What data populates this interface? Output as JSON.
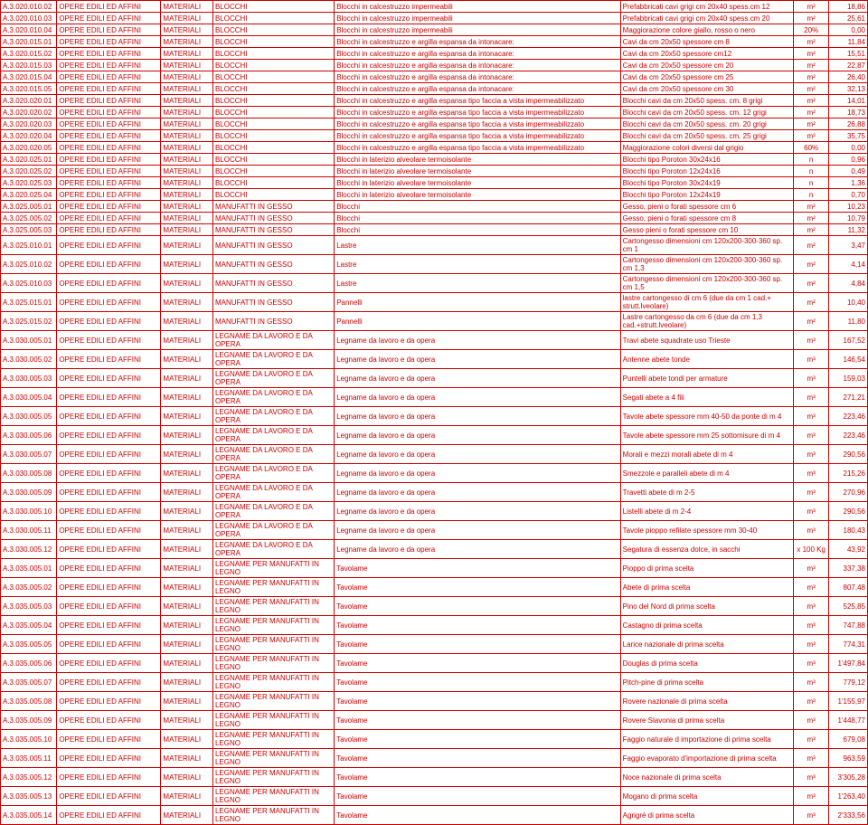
{
  "columns_width": [
    "6.5%",
    "12%",
    "6%",
    "14%",
    "33%",
    "20%",
    "4%",
    "4.5%"
  ],
  "rows": [
    {
      "h": 0,
      "c": [
        "A.3.020.010.02",
        "OPERE EDILI ED AFFINI",
        "MATERIALI",
        "BLOCCHI",
        "Blocchi in calcestruzzo impermeabili",
        "Prefabbricati cavi  grigi cm 20x40 spess.cm 12",
        "m²",
        "18,86"
      ]
    },
    {
      "h": 0,
      "c": [
        "A.3.020.010.03",
        "OPERE EDILI ED AFFINI",
        "MATERIALI",
        "BLOCCHI",
        "Blocchi in calcestruzzo impermeabili",
        "Prefabbricati cavi grigi cm 20x40 spess.cm 20",
        "m²",
        "25,61"
      ]
    },
    {
      "h": 0,
      "c": [
        "A.3.020.010.04",
        "OPERE EDILI ED AFFINI",
        "MATERIALI",
        "BLOCCHI",
        "Blocchi in calcestruzzo impermeabili",
        "Maggiorazione colore giallo, rosso o nero",
        "20%",
        "0,00"
      ]
    },
    {
      "h": 0,
      "c": [
        "A.3.020.015.01",
        "OPERE EDILI ED AFFINI",
        "MATERIALI",
        "BLOCCHI",
        "Blocchi in calcestruzzo e argilla espansa da intonacare:",
        "Cavi da cm 20x50 spessore cm 8",
        "m²",
        "11,84"
      ]
    },
    {
      "h": 0,
      "c": [
        "A.3.020.015.02",
        "OPERE EDILI ED AFFINI",
        "MATERIALI",
        "BLOCCHI",
        "Blocchi in calcestruzzo e argilla espansa da intonacare:",
        "Cavi da cm 20x50 spessore cm12",
        "m²",
        "15,51"
      ]
    },
    {
      "h": 0,
      "c": [
        "A.3.020.015.03",
        "OPERE EDILI ED AFFINI",
        "MATERIALI",
        "BLOCCHI",
        "Blocchi in calcestruzzo e argilla espansa da intonacare:",
        "Cavi da cm 20x50 spessore cm 20",
        "m²",
        "22,87"
      ]
    },
    {
      "h": 0,
      "c": [
        "A.3.020.015.04",
        "OPERE EDILI ED AFFINI",
        "MATERIALI",
        "BLOCCHI",
        "Blocchi in calcestruzzo e argilla espansa da intonacare:",
        "Cavi da cm 20x50 spessore cm 25",
        "m²",
        "26,40"
      ]
    },
    {
      "h": 0,
      "c": [
        "A.3.020.015.05",
        "OPERE EDILI ED AFFINI",
        "MATERIALI",
        "BLOCCHI",
        "Blocchi in calcestruzzo e argilla espansa da intonacare:",
        "Cavi da cm 20x50 spessore cm 30",
        "m²",
        "32,13"
      ]
    },
    {
      "h": 0,
      "c": [
        "A.3.020.020.01",
        "OPERE EDILI ED AFFINI",
        "MATERIALI",
        "BLOCCHI",
        "Blocchi in calcestruzzo e argilla espansa tipo faccia a vista impermeabilizzato",
        "Blocchi cavi da cm 20x50 spess. cm. 8 grigi",
        "m²",
        "14,01"
      ]
    },
    {
      "h": 0,
      "c": [
        "A.3.020.020.02",
        "OPERE EDILI ED AFFINI",
        "MATERIALI",
        "BLOCCHI",
        "Blocchi in calcestruzzo e argilla espansa tipo faccia a vista impermeabilizzato",
        "Blocchi cavi da cm 20x50 spess. cm. 12 grigi",
        "m²",
        "18,73"
      ]
    },
    {
      "h": 0,
      "c": [
        "A.3.020.020.03",
        "OPERE EDILI ED AFFINI",
        "MATERIALI",
        "BLOCCHI",
        "Blocchi in calcestruzzo e argilla espansa tipo faccia a vista impermeabilizzato",
        "Blocchi cavi da cm 20x50 spess. cm. 20 grigi",
        "m²",
        "26,88"
      ]
    },
    {
      "h": 0,
      "c": [
        "A.3.020.020.04",
        "OPERE EDILI ED AFFINI",
        "MATERIALI",
        "BLOCCHI",
        "Blocchi in calcestruzzo e argilla espansa tipo faccia a vista impermeabilizzato",
        "Blocchi cavi da cm 20x50 spess. cm. 25 grigi",
        "m²",
        "35,75"
      ]
    },
    {
      "h": 0,
      "c": [
        "A.3.020.020.05",
        "OPERE EDILI ED AFFINI",
        "MATERIALI",
        "BLOCCHI",
        "Blocchi in calcestruzzo e argilla espansa tipo faccia a vista impermeabilizzato",
        "Maggiorazione colori diversi dal grigio",
        "60%",
        "0,00"
      ]
    },
    {
      "h": 0,
      "c": [
        "A.3.020.025.01",
        "OPERE EDILI ED AFFINI",
        "MATERIALI",
        "BLOCCHI",
        "Blocchi in laterizio alveolare termoisolante",
        "Blocchi tipo Poroton 30x24x16",
        "n",
        "0,96"
      ]
    },
    {
      "h": 0,
      "c": [
        "A.3.020.025.02",
        "OPERE EDILI ED AFFINI",
        "MATERIALI",
        "BLOCCHI",
        "Blocchi in laterizio alveolare termoisolante",
        "Blocchi tipo Poroton 12x24x16",
        "n",
        "0,49"
      ]
    },
    {
      "h": 0,
      "c": [
        "A.3.020.025.03",
        "OPERE EDILI ED AFFINI",
        "MATERIALI",
        "BLOCCHI",
        "Blocchi in laterizio alveolare termoisolante",
        "Blocchi tipo Poroton 30x24x19",
        "n",
        "1,36"
      ]
    },
    {
      "h": 0,
      "c": [
        "A.3.020.025.04",
        "OPERE EDILI ED AFFINI",
        "MATERIALI",
        "BLOCCHI",
        "Blocchi in laterizio alveolare termoisolante",
        "Blocchi tipo Poroton 12x24x19",
        "n",
        "0,70"
      ]
    },
    {
      "h": 0,
      "c": [
        "A.3.025.005.01",
        "OPERE EDILI ED AFFINI",
        "MATERIALI",
        "MANUFATTI IN GESSO",
        "Blocchi",
        "Gesso, pieni o forati spessore cm 6",
        "m²",
        "10,23"
      ]
    },
    {
      "h": 0,
      "c": [
        "A.3.025.005.02",
        "OPERE EDILI ED AFFINI",
        "MATERIALI",
        "MANUFATTI IN GESSO",
        "Blocchi",
        "Gesso, pieni o forati spessore cm 8",
        "m²",
        "10,79"
      ]
    },
    {
      "h": 0,
      "c": [
        "A.3.025.005.03",
        "OPERE EDILI ED AFFINI",
        "MATERIALI",
        "MANUFATTI IN GESSO",
        "Blocchi",
        "Gesso pieni o forati spessore cm 10",
        "m²",
        "11,32"
      ]
    },
    {
      "h": 1,
      "c": [
        "A.3.025.010.01",
        "OPERE EDILI ED AFFINI",
        "MATERIALI",
        "MANUFATTI IN GESSO",
        "Lastre",
        "Cartongesso dimensioni cm 120x200-300-360 sp. cm 1",
        "m²",
        "3,47"
      ]
    },
    {
      "h": 1,
      "c": [
        "A.3.025.010.02",
        "OPERE EDILI ED AFFINI",
        "MATERIALI",
        "MANUFATTI IN GESSO",
        "Lastre",
        "Cartongesso dimensioni cm 120x200-300-360 sp. cm 1,3",
        "m²",
        "4,14"
      ]
    },
    {
      "h": 1,
      "c": [
        "A.3.025.010.03",
        "OPERE EDILI ED AFFINI",
        "MATERIALI",
        "MANUFATTI IN GESSO",
        "Lastre",
        "Cartongesso dimensioni cm 120x200-300-360 sp. cm 1,5",
        "m²",
        "4,84"
      ]
    },
    {
      "h": 1,
      "c": [
        "A.3.025.015.01",
        "OPERE EDILI ED AFFINI",
        "MATERIALI",
        "MANUFATTI IN GESSO",
        "Pannelli",
        "lastre cartongesso di cm 6 (due da cm 1 cad.+ strutt.lveolare)",
        "m²",
        "10,40"
      ]
    },
    {
      "h": 1,
      "c": [
        "A.3.025.015.02",
        "OPERE EDILI ED AFFINI",
        "MATERIALI",
        "MANUFATTI IN GESSO",
        "Pannelli",
        "Lastre cartongesso da cm 6 (due da cm 1,3 cad.+strutt.lveolare)",
        "m²",
        "11,80"
      ]
    },
    {
      "h": 1,
      "c": [
        "A.3.030.005.01",
        "OPERE EDILI ED AFFINI",
        "MATERIALI",
        "LEGNAME DA LAVORO E DA OPERA",
        "Legname da lavoro e da opera",
        "Travi abete squadrate uso Trieste",
        "m³",
        "167,52"
      ]
    },
    {
      "h": 1,
      "c": [
        "A.3.030.005.02",
        "OPERE EDILI ED AFFINI",
        "MATERIALI",
        "LEGNAME DA LAVORO E DA OPERA",
        "Legname da lavoro e da opera",
        "Antenne abete tonde",
        "m³",
        "146,54"
      ]
    },
    {
      "h": 1,
      "c": [
        "A.3.030.005.03",
        "OPERE EDILI ED AFFINI",
        "MATERIALI",
        "LEGNAME DA LAVORO E DA OPERA",
        "Legname da lavoro e da opera",
        "Puntelli abete tondi per armature",
        "m³",
        "159,03"
      ]
    },
    {
      "h": 1,
      "c": [
        "A.3.030.005.04",
        "OPERE EDILI ED AFFINI",
        "MATERIALI",
        "LEGNAME DA LAVORO E DA OPERA",
        "Legname da lavoro e da opera",
        "Segati abete a 4 fili",
        "m³",
        "271,21"
      ]
    },
    {
      "h": 1,
      "c": [
        "A.3.030.005.05",
        "OPERE EDILI ED AFFINI",
        "MATERIALI",
        "LEGNAME DA LAVORO E DA OPERA",
        "Legname da lavoro e da opera",
        "Tavole abete spessore mm 40-50 da ponte di m 4",
        "m³",
        "223,46"
      ]
    },
    {
      "h": 1,
      "c": [
        "A.3.030.005.06",
        "OPERE EDILI ED AFFINI",
        "MATERIALI",
        "LEGNAME DA LAVORO E DA OPERA",
        "Legname da lavoro e da opera",
        "Tavole abete spessore mm 25 sottomisure di m 4",
        "m³",
        "223,46"
      ]
    },
    {
      "h": 1,
      "c": [
        "A.3.030.005.07",
        "OPERE EDILI ED AFFINI",
        "MATERIALI",
        "LEGNAME DA LAVORO E DA OPERA",
        "Legname da lavoro e da opera",
        "Morali e mezzi morali abete di m 4",
        "m³",
        "290,56"
      ]
    },
    {
      "h": 1,
      "c": [
        "A.3.030.005.08",
        "OPERE EDILI ED AFFINI",
        "MATERIALI",
        "LEGNAME DA LAVORO E DA OPERA",
        "Legname da lavoro e da opera",
        "Smezzole e paralleli abete di m 4",
        "m³",
        "215,26"
      ]
    },
    {
      "h": 1,
      "c": [
        "A.3.030.005.09",
        "OPERE EDILI ED AFFINI",
        "MATERIALI",
        "LEGNAME DA LAVORO E DA OPERA",
        "Legname da lavoro e da opera",
        "Travetti abete di m 2-5",
        "m³",
        "270,96"
      ]
    },
    {
      "h": 1,
      "c": [
        "A.3.030.005.10",
        "OPERE EDILI ED AFFINI",
        "MATERIALI",
        "LEGNAME DA LAVORO E DA OPERA",
        "Legname da lavoro e da opera",
        "Listelli abete di m 2-4",
        "m³",
        "290,56"
      ]
    },
    {
      "h": 1,
      "c": [
        "A.3.030.005.11",
        "OPERE EDILI ED AFFINI",
        "MATERIALI",
        "LEGNAME DA LAVORO E DA OPERA",
        "Legname da lavoro e da opera",
        "Tavole pioppo refilate spessore mm 30-40",
        "m³",
        "180,43"
      ]
    },
    {
      "h": 1,
      "c": [
        "A.3.030.005.12",
        "OPERE EDILI ED AFFINI",
        "MATERIALI",
        "LEGNAME DA LAVORO E DA OPERA",
        "Legname da lavoro e da opera",
        "Segatura di essenza dolce, in sacchi",
        "x 100 Kg",
        "43,92"
      ]
    },
    {
      "h": 1,
      "c": [
        "A.3.035.005.01",
        "OPERE EDILI ED AFFINI",
        "MATERIALI",
        "LEGNAME PER MANUFATTI IN LEGNO",
        "Tavolame",
        "Pioppo di prima scelta",
        "m³",
        "337,38"
      ]
    },
    {
      "h": 1,
      "c": [
        "A.3.035.005.02",
        "OPERE EDILI ED AFFINI",
        "MATERIALI",
        "LEGNAME PER MANUFATTI IN LEGNO",
        "Tavolame",
        "Abete di prima scelta",
        "m³",
        "807,48"
      ]
    },
    {
      "h": 1,
      "c": [
        "A.3.035.005.03",
        "OPERE EDILI ED AFFINI",
        "MATERIALI",
        "LEGNAME PER MANUFATTI IN LEGNO",
        "Tavolame",
        "Pino del Nord di prima scelta",
        "m³",
        "525,85"
      ]
    },
    {
      "h": 1,
      "c": [
        "A.3.035.005.04",
        "OPERE EDILI ED AFFINI",
        "MATERIALI",
        "LEGNAME PER MANUFATTI IN LEGNO",
        "Tavolame",
        "Castagno di prima scelta",
        "m³",
        "747,88"
      ]
    },
    {
      "h": 1,
      "c": [
        "A.3.035.005.05",
        "OPERE EDILI ED AFFINI",
        "MATERIALI",
        "LEGNAME PER MANUFATTI IN LEGNO",
        "Tavolame",
        "Larice nazionale di prima scelta",
        "m³",
        "774,31"
      ]
    },
    {
      "h": 1,
      "c": [
        "A.3.035.005.06",
        "OPERE EDILI ED AFFINI",
        "MATERIALI",
        "LEGNAME PER MANUFATTI IN LEGNO",
        "Tavolame",
        "Douglas di prima scelta",
        "m³",
        "1'497,84"
      ]
    },
    {
      "h": 1,
      "c": [
        "A.3.035.005.07",
        "OPERE EDILI ED AFFINI",
        "MATERIALI",
        "LEGNAME PER MANUFATTI IN LEGNO",
        "Tavolame",
        "Pitch-pine di prima scelta",
        "m³",
        "779,12"
      ]
    },
    {
      "h": 1,
      "c": [
        "A.3.035.005.08",
        "OPERE EDILI ED AFFINI",
        "MATERIALI",
        "LEGNAME PER MANUFATTI IN LEGNO",
        "Tavolame",
        "Rovere nazionale di prima scelta",
        "m³",
        "1'155,97"
      ]
    },
    {
      "h": 1,
      "c": [
        "A.3.035.005.09",
        "OPERE EDILI ED AFFINI",
        "MATERIALI",
        "LEGNAME PER MANUFATTI IN LEGNO",
        "Tavolame",
        "Rovere Slavonia di prima scelta",
        "m³",
        "1'448,77"
      ]
    },
    {
      "h": 1,
      "c": [
        "A.3.035.005.10",
        "OPERE EDILI ED AFFINI",
        "MATERIALI",
        "LEGNAME PER MANUFATTI IN LEGNO",
        "Tavolame",
        "Faggio naturale d importazione di prima scelta",
        "m³",
        "679,08"
      ]
    },
    {
      "h": 1,
      "c": [
        "A.3.035.005.11",
        "OPERE EDILI ED AFFINI",
        "MATERIALI",
        "LEGNAME PER MANUFATTI IN LEGNO",
        "Tavolame",
        "Faggio evaporato d'importazione di prima scelta",
        "m³",
        "963,59"
      ]
    },
    {
      "h": 1,
      "c": [
        "A.3.035.005.12",
        "OPERE EDILI ED AFFINI",
        "MATERIALI",
        "LEGNAME PER MANUFATTI IN LEGNO",
        "Tavolame",
        "Noce nazionale di prima scelta",
        "m³",
        "3'305,28"
      ]
    },
    {
      "h": 1,
      "c": [
        "A.3.035.005.13",
        "OPERE EDILI ED AFFINI",
        "MATERIALI",
        "LEGNAME PER MANUFATTI IN LEGNO",
        "Tavolame",
        "Mogano di prima scelta",
        "m³",
        "1'263,40"
      ]
    },
    {
      "h": 1,
      "c": [
        "A.3.035.005.14",
        "OPERE EDILI ED AFFINI",
        "MATERIALI",
        "LEGNAME PER MANUFATTI IN LEGNO",
        "Tavolame",
        "Agrigré di prima scelta",
        "m³",
        "2'333,56"
      ]
    }
  ]
}
